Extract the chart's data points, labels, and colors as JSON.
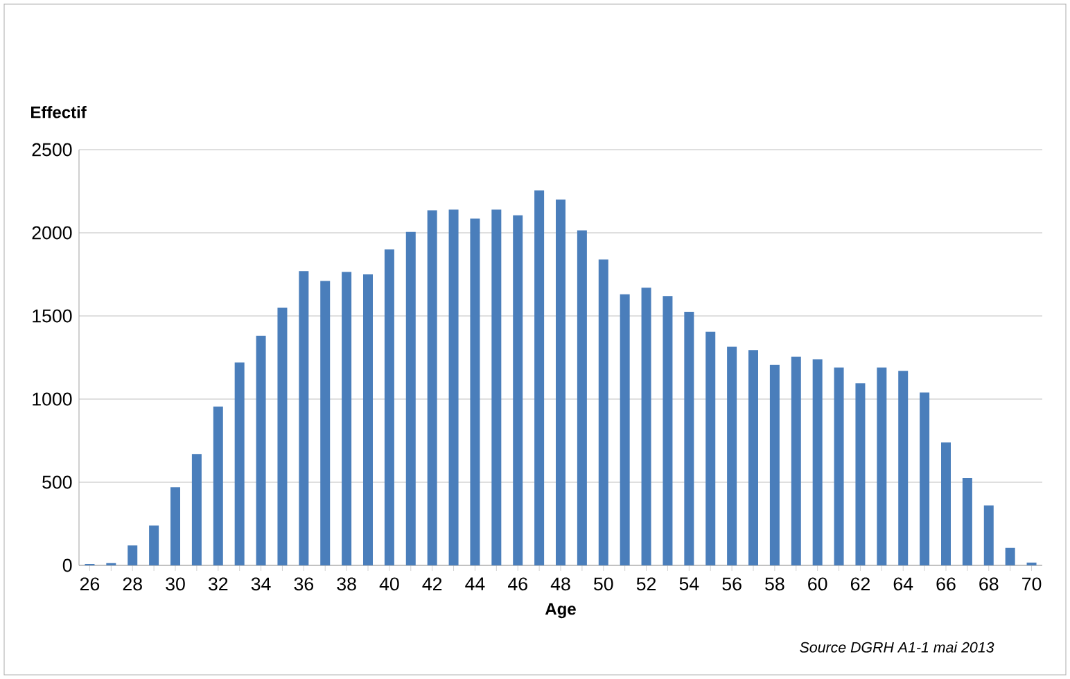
{
  "chart_data": {
    "type": "bar",
    "ylabel": "Effectif",
    "xlabel": "Age",
    "categories": [
      "26",
      null,
      "28",
      null,
      "30",
      null,
      "32",
      null,
      "34",
      null,
      "36",
      null,
      "38",
      null,
      "40",
      null,
      "42",
      null,
      "44",
      null,
      "46",
      null,
      "48",
      null,
      "50",
      null,
      "52",
      null,
      "54",
      null,
      "56",
      null,
      "58",
      null,
      "60",
      null,
      "62",
      null,
      "64",
      null,
      "66",
      null,
      "68",
      null,
      "70"
    ],
    "values": [
      8,
      14,
      120,
      240,
      470,
      670,
      955,
      1220,
      1380,
      1550,
      1770,
      1710,
      1765,
      1750,
      1900,
      2005,
      2135,
      2140,
      2085,
      2140,
      2105,
      2255,
      2200,
      2015,
      1840,
      1630,
      1670,
      1620,
      1525,
      1405,
      1315,
      1295,
      1205,
      1255,
      1240,
      1190,
      1095,
      1190,
      1170,
      1040,
      740,
      525,
      360,
      105,
      17
    ],
    "color": "#4a7ebb",
    "ylim": [
      0,
      2500
    ],
    "yticks": [
      0,
      500,
      1000,
      1500,
      2000,
      2500
    ],
    "grid": "y",
    "annotations": [
      "Source DGRH A1-1 mai 2013"
    ]
  }
}
